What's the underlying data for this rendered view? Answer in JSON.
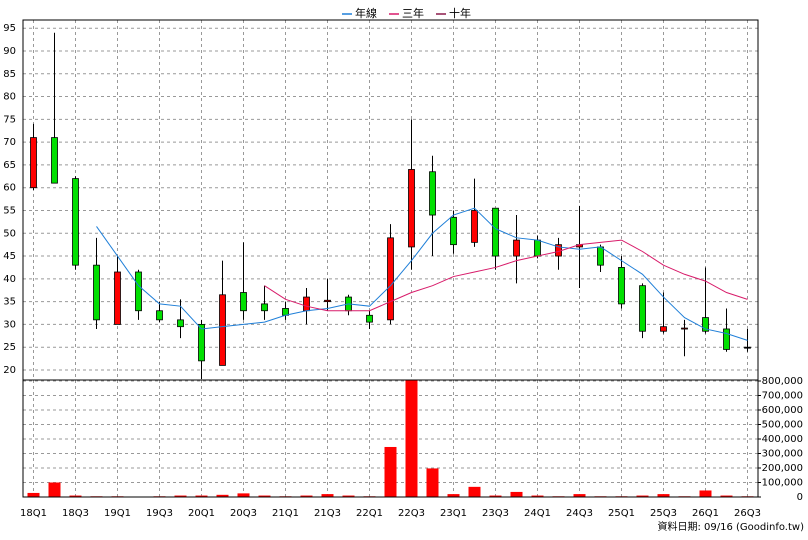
{
  "chart_data": [
    {
      "type": "candlestick",
      "ylim": [
        17.8,
        96.8
      ],
      "yticks": [
        20,
        25,
        30,
        35,
        40,
        45,
        50,
        55,
        60,
        65,
        70,
        75,
        80,
        85,
        90,
        95
      ],
      "grid": true,
      "legend": "top",
      "up_color": "#ff0000",
      "down_color": "#00e000",
      "open": [
        60,
        71,
        62,
        43,
        30,
        41.5,
        33,
        31,
        30,
        21,
        37,
        34.5,
        33.5,
        33,
        35,
        36,
        32,
        31,
        47,
        63.5,
        53.5,
        48,
        55.5,
        45,
        48.5,
        45,
        47,
        47,
        42.5,
        38.5,
        28.5,
        29,
        31.5,
        29,
        25
      ],
      "high": [
        74,
        94,
        62.5,
        49,
        45,
        42,
        35,
        35.5,
        31,
        44,
        48,
        38.5,
        35,
        38,
        40,
        36.5,
        33,
        52,
        75,
        67,
        55,
        62,
        55.5,
        54,
        49.5,
        49,
        56,
        47.5,
        45,
        39,
        37,
        31,
        42.5,
        33.5,
        29
      ],
      "low": [
        59.5,
        61,
        42,
        29,
        30,
        31,
        30.5,
        27,
        18,
        21,
        31,
        31,
        31,
        30,
        33,
        32,
        29,
        30,
        42,
        45,
        45.5,
        47,
        42,
        39,
        44.5,
        42,
        38,
        41.5,
        33.5,
        27,
        28,
        23,
        28,
        24,
        24
      ],
      "close": [
        71,
        61,
        43,
        31,
        41.5,
        33,
        31,
        29.5,
        22,
        36.5,
        33,
        33,
        32,
        36,
        35.3,
        33,
        30.5,
        49,
        64,
        54,
        47.5,
        55,
        45,
        48.5,
        45,
        47.5,
        47.5,
        43,
        34.5,
        28.5,
        29.5,
        29.2,
        28.5,
        24.5,
        25
      ],
      "series": [
        {
          "name": "年線",
          "color": "#1f7fd8",
          "values": [
            null,
            null,
            null,
            51.5,
            45,
            38.5,
            34.5,
            34,
            29,
            29.5,
            30,
            30.5,
            32,
            33,
            33.5,
            34.5,
            34,
            38.5,
            44,
            50,
            54,
            55.5,
            51,
            49,
            48.5,
            47,
            46.5,
            47,
            44,
            41,
            36,
            31.5,
            29,
            28,
            26.5
          ]
        },
        {
          "name": "三年",
          "color": "#d81b6a",
          "values": [
            null,
            null,
            null,
            null,
            null,
            null,
            null,
            null,
            null,
            null,
            null,
            38.5,
            35.5,
            34,
            33,
            33,
            33,
            35,
            37,
            38.5,
            40.5,
            41.5,
            42.5,
            44,
            45,
            46,
            47.5,
            48,
            48.5,
            46,
            43,
            41,
            39.5,
            37,
            35.5
          ]
        },
        {
          "name": "十年",
          "color": "#8b1a4a",
          "values": [
            null,
            null,
            null,
            null,
            null,
            null,
            null,
            null,
            null,
            null,
            null,
            null,
            null,
            null,
            null,
            null,
            null,
            null,
            null,
            null,
            null,
            null,
            null,
            null,
            null,
            null,
            null,
            null,
            null,
            null,
            null,
            null,
            null,
            null,
            null
          ]
        }
      ]
    },
    {
      "type": "bar",
      "categories": [
        "18Q1",
        null,
        "18Q3",
        null,
        "19Q1",
        null,
        "19Q3",
        null,
        "20Q1",
        null,
        "20Q3",
        null,
        "21Q1",
        null,
        "21Q3",
        null,
        "22Q1",
        null,
        "22Q3",
        null,
        "23Q1",
        null,
        "23Q3",
        null,
        "24Q1",
        null,
        "24Q3",
        null,
        "25Q1",
        null,
        "25Q3",
        null,
        "26Q1",
        null,
        "26Q3"
      ],
      "values": [
        28000,
        100000,
        10000,
        5000,
        5000,
        3000,
        5000,
        10000,
        10000,
        15000,
        25000,
        10000,
        5000,
        10000,
        20000,
        10000,
        5000,
        345000,
        810000,
        197000,
        20000,
        70000,
        10000,
        35000,
        10000,
        5000,
        20000,
        5000,
        5000,
        10000,
        20000,
        5000,
        45000,
        10000,
        5000
      ],
      "color": "#ff0000",
      "ylim": [
        0,
        800000
      ],
      "yticks": [
        0,
        {
          "value": 100000,
          "label": "100,000"
        },
        {
          "value": 200000,
          "label": "200,000"
        },
        {
          "value": 300000,
          "label": "300,000"
        },
        {
          "value": 400000,
          "label": "400,000"
        },
        {
          "value": 500000,
          "label": "500,000"
        },
        {
          "value": 600000,
          "label": "600,000"
        },
        {
          "value": 700000,
          "label": "700,000"
        },
        {
          "value": 800000,
          "label": "800,000"
        }
      ]
    }
  ],
  "footer": "資料日期: 09/16 (Goodinfo.tw)"
}
